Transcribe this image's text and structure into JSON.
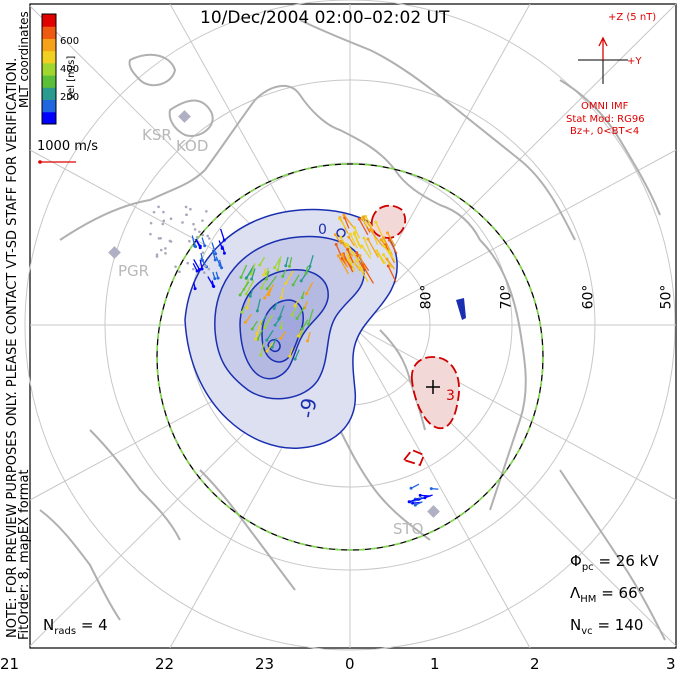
{
  "title": "10/Dec/2004 02:00–02:02 UT",
  "coord_label": "MLT coordinates",
  "colorbar": {
    "label": "Vel [m/s]",
    "ticks": [
      "600",
      "400",
      "200"
    ],
    "colors": [
      "#0000ff",
      "#1f66e0",
      "#2a9b8e",
      "#5bbf3a",
      "#9fd630",
      "#f0d020",
      "#f5a21a",
      "#ef5a12",
      "#e00000"
    ]
  },
  "ref_vector": {
    "label": "1000 m/s"
  },
  "notice_line1": "NOTE: FOR PREVIEW PURPOSES ONLY. PLEASE CONTACT VT-SD STAFF FOR VERIFICATION.",
  "notice_line2": "FitOrder: 8, mapEX format",
  "imf": {
    "z_label": "+Z (5 nT)",
    "y_label": "+Y",
    "source": "OMNI IMF",
    "stat_mod": "Stat Mod: RG96",
    "condition": "Bz+, 0<BT<4"
  },
  "latitude_labels": [
    "80°",
    "70°",
    "60°",
    "50°"
  ],
  "contour_labels": [
    "-9",
    "0",
    "3"
  ],
  "radar_sites": [
    "KSR",
    "KOD",
    "PGR",
    "STO"
  ],
  "stats": {
    "phi_pc": "= 26 kV",
    "lambda_hm": "= 66°",
    "n_vc": "= 140",
    "n_rads": "= 4"
  },
  "mlt_ticks": [
    "21",
    "22",
    "23",
    "0",
    "1",
    "2",
    "3"
  ],
  "colors": {
    "accent": "#e00000",
    "contour_neg": "#1a2fb0",
    "hmb": "#7fd64a",
    "grid": "#c8c8c8",
    "coast": "#b0b0b0"
  }
}
